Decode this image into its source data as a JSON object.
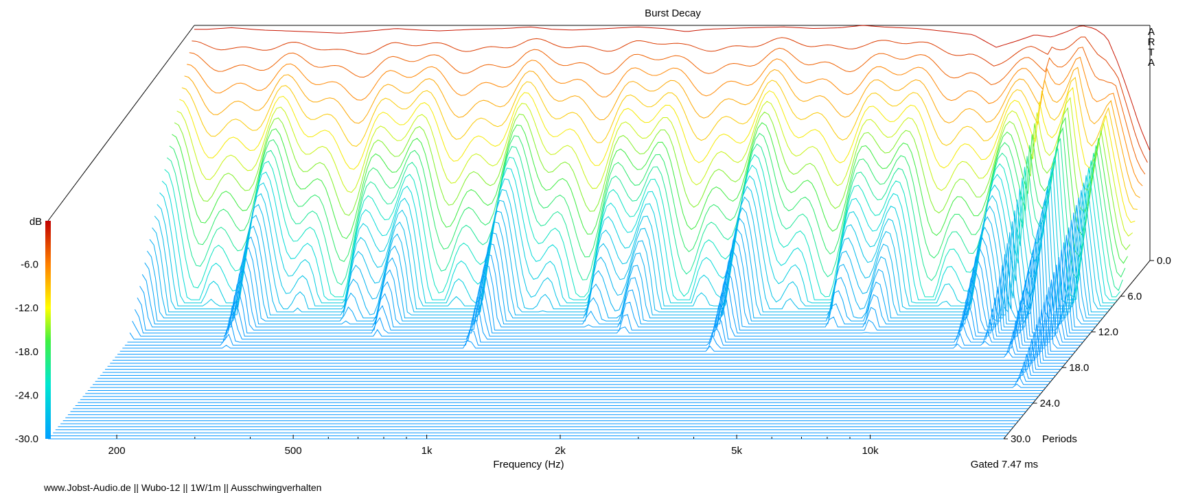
{
  "chart_data": {
    "type": "waterfall",
    "title": "Burst Decay",
    "brand_letters": [
      "A",
      "R",
      "T",
      "A"
    ],
    "z_unit_label": "dB",
    "z_ticks": [
      "-6.0",
      "-12.0",
      "-18.0",
      "-24.0",
      "-30.0"
    ],
    "zlim": [
      -30,
      0
    ],
    "x_label": "Frequency (Hz)",
    "x_scale": "log",
    "x_range": [
      140,
      20000
    ],
    "x_ticks": [
      {
        "label": "200",
        "value": 200
      },
      {
        "label": "500",
        "value": 500
      },
      {
        "label": "1k",
        "value": 1000
      },
      {
        "label": "2k",
        "value": 2000
      },
      {
        "label": "5k",
        "value": 5000
      },
      {
        "label": "10k",
        "value": 10000
      }
    ],
    "x_minor_ticks": [
      300,
      400,
      600,
      700,
      800,
      900,
      3000,
      4000,
      6000,
      7000,
      8000,
      9000
    ],
    "y_label": "Periods",
    "y_ticks": [
      "0.0",
      "6.0",
      "12.0",
      "18.0",
      "24.0",
      "30.0"
    ],
    "y_range": [
      0,
      30
    ],
    "gate_label": "Gated 7.47 ms",
    "series_count": 60,
    "series_note": "front slice at 0.0 Periods, levels in dB",
    "front_slice": {
      "freq": [
        150,
        170,
        200,
        250,
        300,
        350,
        400,
        450,
        500,
        600,
        700,
        800,
        900,
        1000,
        1200,
        1400,
        1600,
        1800,
        2000,
        2500,
        3000,
        3500,
        4000,
        4500,
        5000,
        6000,
        7000,
        8000,
        9000,
        10000,
        11000,
        12000,
        13000,
        14000,
        15000,
        16000,
        17000,
        18000,
        19000,
        20000
      ],
      "level": [
        -0.5,
        -0.3,
        -0.6,
        -0.8,
        -1.0,
        -0.7,
        -0.4,
        -0.6,
        -0.7,
        -0.5,
        -0.4,
        -0.2,
        -0.5,
        -0.6,
        -0.4,
        -0.2,
        -0.4,
        -0.8,
        -0.5,
        -0.3,
        -0.2,
        -0.4,
        -0.3,
        0.0,
        -0.2,
        -0.4,
        -0.8,
        -1.2,
        -2.8,
        -2.0,
        -1.2,
        -1.5,
        -0.8,
        0.0,
        -0.4,
        -1.5,
        -5.0,
        -9.0,
        -13.0,
        -16.0
      ]
    }
  },
  "footer_text": "www.Jobst-Audio.de  ||  Wubo-12  ||  1W/1m  ||  Ausschwingverhalten"
}
